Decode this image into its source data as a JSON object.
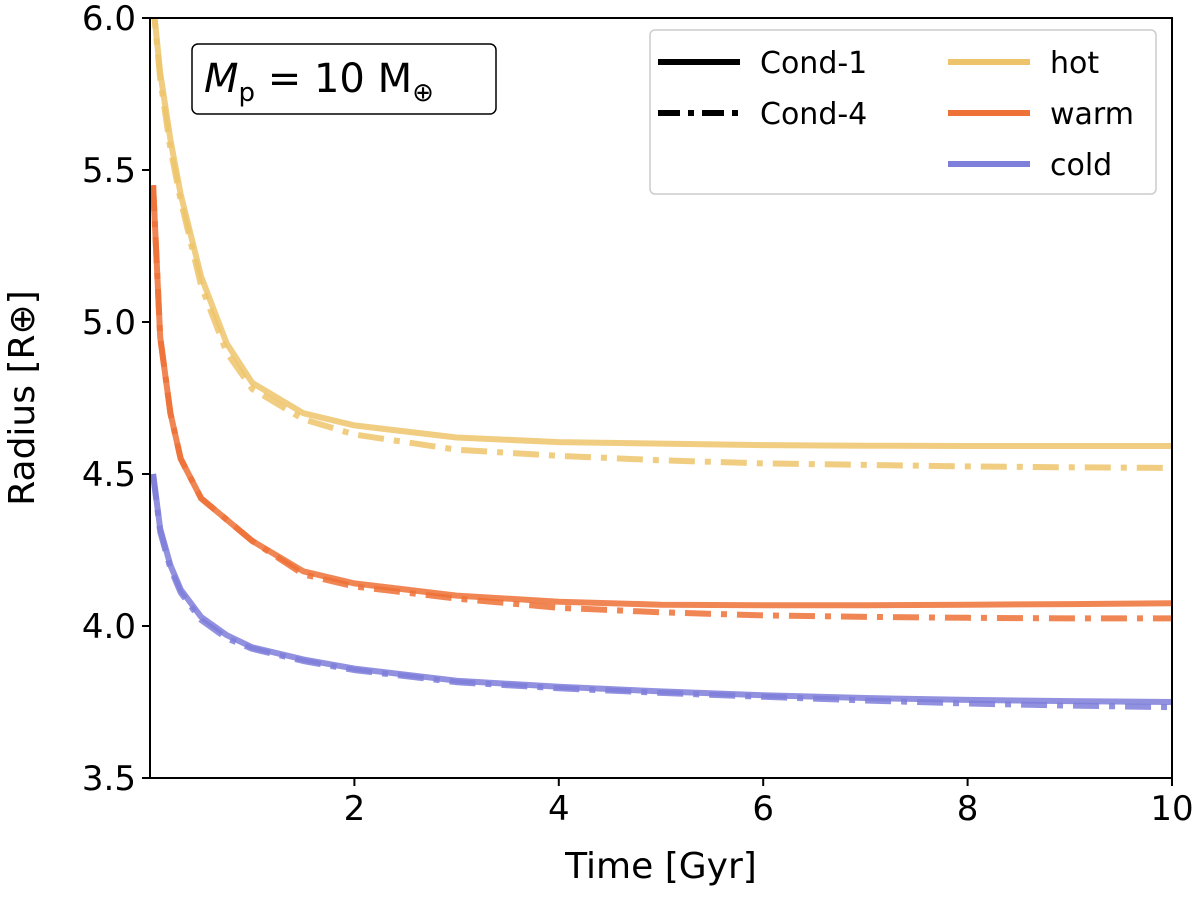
{
  "chart_data": {
    "type": "line",
    "title": "",
    "xlabel": "Time [Gyr]",
    "ylabel": "Radius [R⊕]",
    "xlim": [
      0,
      10
    ],
    "ylim": [
      3.5,
      6.0
    ],
    "xticks": [
      2,
      4,
      6,
      8,
      10
    ],
    "yticks": [
      3.5,
      4.0,
      4.5,
      5.0,
      5.5,
      6.0
    ],
    "xtick_labels": [
      "2",
      "4",
      "6",
      "8",
      "10"
    ],
    "ytick_labels": [
      "3.5",
      "4.0",
      "4.5",
      "5.0",
      "5.5",
      "6.0"
    ],
    "grid": false,
    "legend_position": "top-right",
    "annotation": {
      "symbol": "M",
      "subscript": "p",
      "text": " = 10 M",
      "unit_symbol": "⊕",
      "position": "top-left"
    },
    "legend": {
      "linestyles": [
        {
          "label": "Cond-1",
          "style": "solid"
        },
        {
          "label": "Cond-4",
          "style": "dashdot"
        }
      ],
      "colors": [
        {
          "label": "hot",
          "color": "#EDC46B"
        },
        {
          "label": "warm",
          "color": "#EE7137"
        },
        {
          "label": "cold",
          "color": "#7E7EDB"
        }
      ]
    },
    "x": [
      0.03,
      0.1,
      0.2,
      0.3,
      0.5,
      0.75,
      1,
      1.5,
      2,
      3,
      4,
      5,
      6,
      7,
      8,
      9,
      10
    ],
    "series": [
      {
        "name": "hot",
        "style": "solid",
        "color": "#EDC46B",
        "values": [
          6.05,
          5.82,
          5.6,
          5.42,
          5.15,
          4.93,
          4.8,
          4.7,
          4.66,
          4.62,
          4.605,
          4.6,
          4.595,
          4.593,
          4.592,
          4.592,
          4.592
        ]
      },
      {
        "name": "hot",
        "style": "dashdot",
        "color": "#EDC46B",
        "values": [
          6.05,
          5.8,
          5.57,
          5.4,
          5.12,
          4.9,
          4.78,
          4.68,
          4.63,
          4.58,
          4.56,
          4.545,
          4.535,
          4.53,
          4.525,
          4.522,
          4.52
        ]
      },
      {
        "name": "warm",
        "style": "solid",
        "color": "#EE7137",
        "values": [
          5.45,
          4.95,
          4.7,
          4.55,
          4.42,
          4.35,
          4.28,
          4.18,
          4.14,
          4.1,
          4.08,
          4.07,
          4.068,
          4.068,
          4.07,
          4.072,
          4.075
        ]
      },
      {
        "name": "warm",
        "style": "dashdot",
        "color": "#EE7137",
        "values": [
          5.45,
          4.95,
          4.7,
          4.55,
          4.42,
          4.35,
          4.28,
          4.17,
          4.13,
          4.09,
          4.06,
          4.045,
          4.035,
          4.03,
          4.027,
          4.025,
          4.025
        ]
      },
      {
        "name": "cold",
        "style": "solid",
        "color": "#7E7EDB",
        "values": [
          4.5,
          4.32,
          4.2,
          4.12,
          4.03,
          3.97,
          3.93,
          3.89,
          3.86,
          3.82,
          3.8,
          3.785,
          3.772,
          3.763,
          3.757,
          3.753,
          3.75
        ]
      },
      {
        "name": "cold",
        "style": "dashdot",
        "color": "#7E7EDB",
        "values": [
          4.5,
          4.31,
          4.19,
          4.11,
          4.02,
          3.96,
          3.925,
          3.885,
          3.855,
          3.815,
          3.795,
          3.78,
          3.767,
          3.755,
          3.745,
          3.738,
          3.733
        ]
      }
    ]
  }
}
